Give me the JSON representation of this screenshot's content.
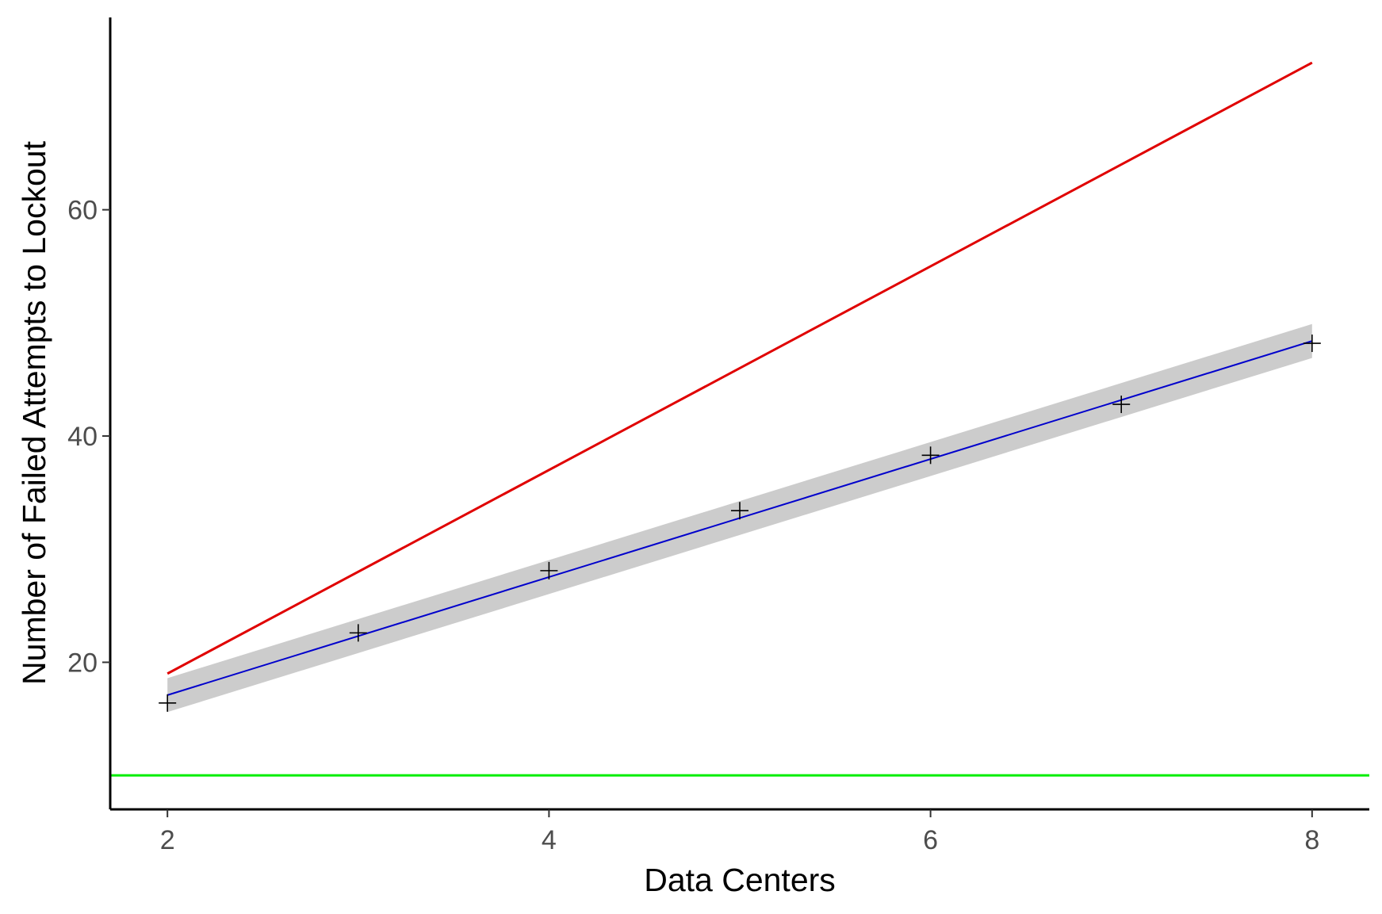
{
  "chart_data": {
    "type": "scatter",
    "title": "",
    "xlabel": "Data Centers",
    "ylabel": "Number of Failed Attempts to Lockout",
    "xlim": [
      1.7,
      8.3
    ],
    "ylim": [
      7,
      77
    ],
    "x_ticks": [
      2,
      4,
      6,
      8
    ],
    "y_ticks": [
      20,
      40,
      60
    ],
    "grid": false,
    "legend": "none",
    "series": [
      {
        "kind": "points",
        "marker": "cross",
        "color": "#000000",
        "x": [
          2,
          3,
          4,
          5,
          6,
          7,
          8
        ],
        "y": [
          16.4,
          22.6,
          28.1,
          33.4,
          38.3,
          42.8,
          48.2
        ]
      },
      {
        "kind": "fit-line",
        "color": "#0000cc",
        "ribbon_color": "#cccccc",
        "x": [
          2,
          8
        ],
        "y": [
          17.1,
          48.4
        ],
        "ribbon_lower": [
          15.6,
          46.9
        ],
        "ribbon_upper": [
          18.6,
          49.9
        ]
      },
      {
        "kind": "line",
        "color": "#e00000",
        "x": [
          2,
          8
        ],
        "y": [
          19,
          73
        ]
      },
      {
        "kind": "hline",
        "color": "#00ee00",
        "y": 10
      }
    ]
  }
}
